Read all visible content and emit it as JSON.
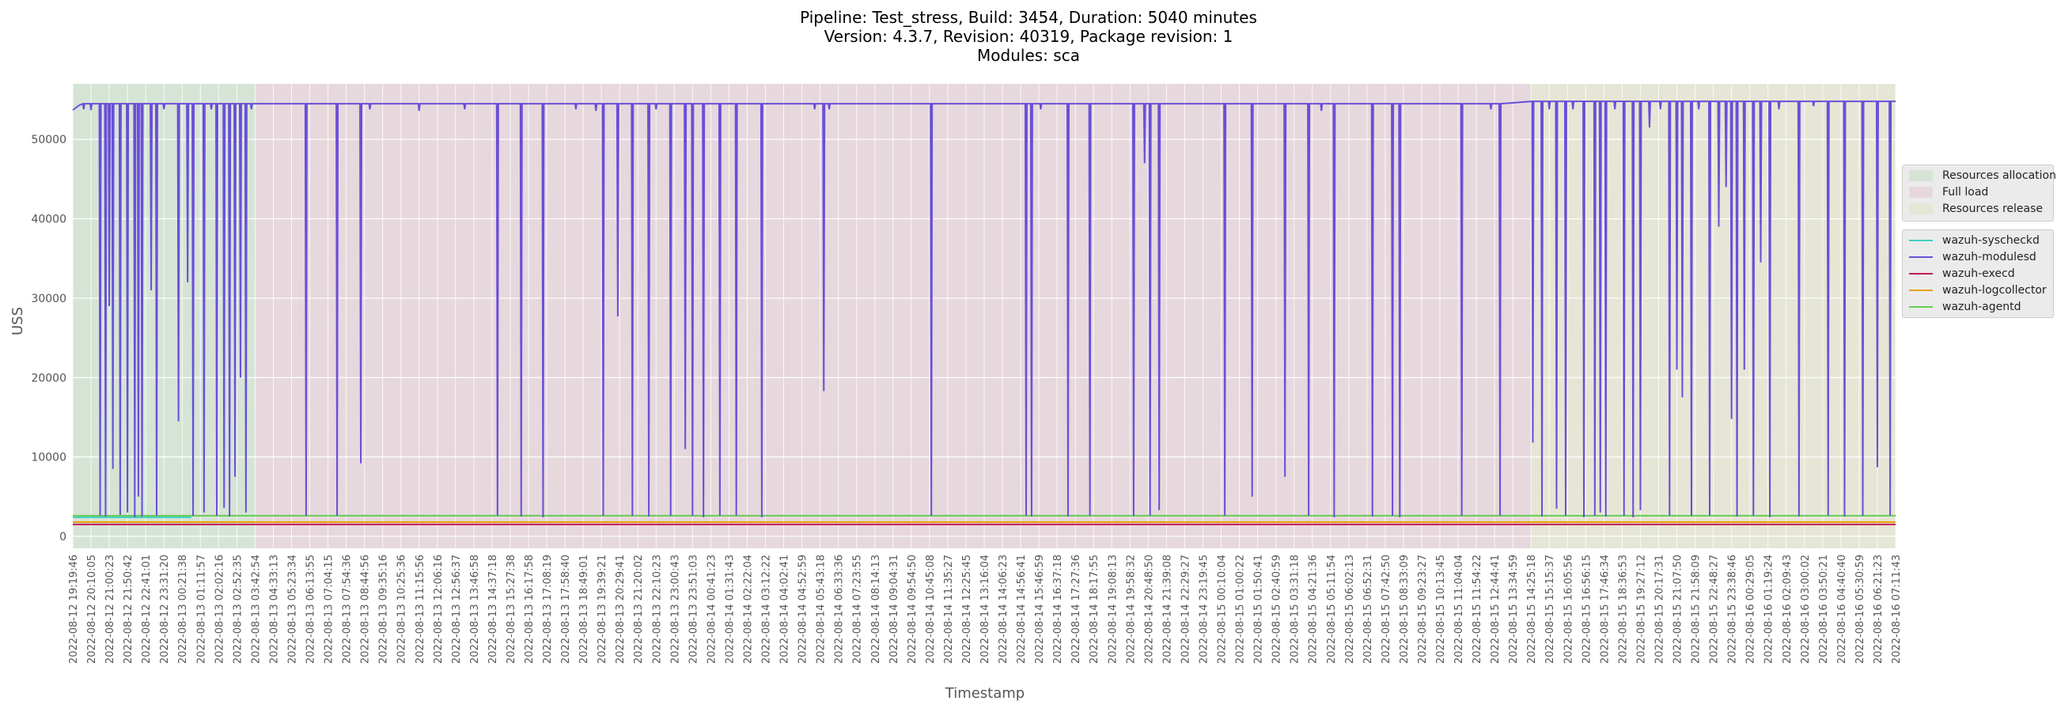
{
  "title_lines": [
    "Pipeline: Test_stress, Build: 3454, Duration: 5040 minutes",
    "Version: 4.3.7, Revision: 40319, Package revision: 1",
    "Modules: sca"
  ],
  "chart_data": {
    "type": "line",
    "xlabel": "Timestamp",
    "ylabel": "USS",
    "ylim": [
      -1500,
      57000
    ],
    "yticks": [
      0,
      10000,
      20000,
      30000,
      40000,
      50000
    ],
    "grid": true,
    "legend_placement": "right",
    "categories": [
      "2022-08-12 19:19:46",
      "2022-08-12 20:10:05",
      "2022-08-12 21:00:23",
      "2022-08-12 21:50:42",
      "2022-08-12 22:41:01",
      "2022-08-12 23:31:20",
      "2022-08-13 00:21:38",
      "2022-08-13 01:11:57",
      "2022-08-13 02:02:16",
      "2022-08-13 02:52:35",
      "2022-08-13 03:42:54",
      "2022-08-13 04:33:13",
      "2022-08-13 05:23:34",
      "2022-08-13 06:13:55",
      "2022-08-13 07:04:15",
      "2022-08-13 07:54:36",
      "2022-08-13 08:44:56",
      "2022-08-13 09:35:16",
      "2022-08-13 10:25:36",
      "2022-08-13 11:15:56",
      "2022-08-13 12:06:16",
      "2022-08-13 12:56:37",
      "2022-08-13 13:46:58",
      "2022-08-13 14:37:18",
      "2022-08-13 15:27:38",
      "2022-08-13 16:17:58",
      "2022-08-13 17:08:19",
      "2022-08-13 17:58:40",
      "2022-08-13 18:49:01",
      "2022-08-13 19:39:21",
      "2022-08-13 20:29:41",
      "2022-08-13 21:20:02",
      "2022-08-13 22:10:23",
      "2022-08-13 23:00:43",
      "2022-08-13 23:51:03",
      "2022-08-14 00:41:23",
      "2022-08-14 01:31:43",
      "2022-08-14 02:22:04",
      "2022-08-14 03:12:22",
      "2022-08-14 04:02:41",
      "2022-08-14 04:52:59",
      "2022-08-14 05:43:18",
      "2022-08-14 06:33:36",
      "2022-08-14 07:23:55",
      "2022-08-14 08:14:13",
      "2022-08-14 09:04:31",
      "2022-08-14 09:54:50",
      "2022-08-14 10:45:08",
      "2022-08-14 11:35:27",
      "2022-08-14 12:25:45",
      "2022-08-14 13:16:04",
      "2022-08-14 14:06:23",
      "2022-08-14 14:56:41",
      "2022-08-14 15:46:59",
      "2022-08-14 16:37:18",
      "2022-08-14 17:27:36",
      "2022-08-14 18:17:55",
      "2022-08-14 19:08:13",
      "2022-08-14 19:58:32",
      "2022-08-14 20:48:50",
      "2022-08-14 21:39:08",
      "2022-08-14 22:29:27",
      "2022-08-14 23:19:45",
      "2022-08-15 00:10:04",
      "2022-08-15 01:00:22",
      "2022-08-15 01:50:41",
      "2022-08-15 02:40:59",
      "2022-08-15 03:31:18",
      "2022-08-15 04:21:36",
      "2022-08-15 05:11:54",
      "2022-08-15 06:02:13",
      "2022-08-15 06:52:31",
      "2022-08-15 07:42:50",
      "2022-08-15 08:33:09",
      "2022-08-15 09:23:27",
      "2022-08-15 10:13:45",
      "2022-08-15 11:04:04",
      "2022-08-15 11:54:22",
      "2022-08-15 12:44:41",
      "2022-08-15 13:34:59",
      "2022-08-15 14:25:18",
      "2022-08-15 15:15:37",
      "2022-08-15 16:05:56",
      "2022-08-15 16:56:15",
      "2022-08-15 17:46:34",
      "2022-08-15 18:36:53",
      "2022-08-15 19:27:12",
      "2022-08-15 20:17:31",
      "2022-08-15 21:07:50",
      "2022-08-15 21:58:09",
      "2022-08-15 22:48:27",
      "2022-08-15 23:38:46",
      "2022-08-16 00:29:05",
      "2022-08-16 01:19:24",
      "2022-08-16 02:09:43",
      "2022-08-16 03:00:02",
      "2022-08-16 03:50:21",
      "2022-08-16 04:40:40",
      "2022-08-16 05:30:59",
      "2022-08-16 06:21:23",
      "2022-08-16 07:11:43"
    ],
    "phases": [
      {
        "name": "Resources allocation",
        "from": "2022-08-12 19:19:46",
        "to": "2022-08-13 03:42:54",
        "color": "#d6e4d6"
      },
      {
        "name": "Full load",
        "from": "2022-08-13 03:42:54",
        "to": "2022-08-15 14:25:18",
        "color": "#e6d8dc"
      },
      {
        "name": "Resources release",
        "from": "2022-08-15 14:25:18",
        "to": "2022-08-16 07:11:43",
        "color": "#e6e6d6"
      }
    ],
    "series": [
      {
        "name": "wazuh-syscheckd",
        "color": "#40d0c0",
        "base": 2400
      },
      {
        "name": "wazuh-modulesd",
        "color": "#6a4fd8",
        "base": 54500
      },
      {
        "name": "wazuh-execd",
        "color": "#c2185b",
        "base": 1500
      },
      {
        "name": "wazuh-logcollector",
        "color": "#e6a000",
        "base": 1800
      },
      {
        "name": "wazuh-agentd",
        "color": "#66cc55",
        "base": 2600
      }
    ],
    "modulesd_dips": [
      [
        0.6,
        53800
      ],
      [
        1.0,
        53700
      ],
      [
        1.5,
        2600
      ],
      [
        1.8,
        2500
      ],
      [
        2.0,
        29000
      ],
      [
        2.2,
        8500
      ],
      [
        2.6,
        2700
      ],
      [
        3.0,
        3000
      ],
      [
        3.4,
        2400
      ],
      [
        3.6,
        5000
      ],
      [
        3.8,
        2500
      ],
      [
        4.3,
        31000
      ],
      [
        4.6,
        2600
      ],
      [
        5.0,
        53800
      ],
      [
        5.8,
        14500
      ],
      [
        6.3,
        32000
      ],
      [
        6.6,
        2600
      ],
      [
        7.2,
        3000
      ],
      [
        7.6,
        53800
      ],
      [
        7.9,
        2600
      ],
      [
        8.3,
        3600
      ],
      [
        8.6,
        2500
      ],
      [
        8.9,
        7500
      ],
      [
        9.2,
        20000
      ],
      [
        9.5,
        3000
      ],
      [
        9.8,
        53800
      ],
      [
        12.8,
        2600
      ],
      [
        14.5,
        2600
      ],
      [
        15.8,
        9200
      ],
      [
        16.3,
        53800
      ],
      [
        19.0,
        53600
      ],
      [
        21.5,
        53800
      ],
      [
        23.3,
        2600
      ],
      [
        24.6,
        2500
      ],
      [
        25.8,
        2400
      ],
      [
        27.6,
        53800
      ],
      [
        28.7,
        53600
      ],
      [
        29.1,
        2600
      ],
      [
        29.9,
        27700
      ],
      [
        30.7,
        2600
      ],
      [
        31.6,
        2500
      ],
      [
        32.0,
        53800
      ],
      [
        32.8,
        2600
      ],
      [
        33.6,
        11000
      ],
      [
        34.0,
        2600
      ],
      [
        34.6,
        2400
      ],
      [
        35.5,
        2600
      ],
      [
        36.4,
        2600
      ],
      [
        37.8,
        2400
      ],
      [
        40.7,
        53800
      ],
      [
        41.2,
        18300
      ],
      [
        41.5,
        53800
      ],
      [
        47.1,
        2600
      ],
      [
        52.3,
        2600
      ],
      [
        52.6,
        2500
      ],
      [
        53.1,
        53800
      ],
      [
        54.6,
        2500
      ],
      [
        55.8,
        2600
      ],
      [
        58.2,
        2600
      ],
      [
        58.8,
        47000
      ],
      [
        59.1,
        2600
      ],
      [
        59.6,
        3300
      ],
      [
        63.2,
        2600
      ],
      [
        64.7,
        5000
      ],
      [
        66.5,
        7500
      ],
      [
        67.8,
        2600
      ],
      [
        68.5,
        53600
      ],
      [
        69.2,
        2400
      ],
      [
        71.3,
        2500
      ],
      [
        72.4,
        2600
      ],
      [
        72.8,
        2400
      ],
      [
        76.2,
        2600
      ],
      [
        77.8,
        53800
      ],
      [
        78.3,
        2600
      ],
      [
        80.1,
        11800
      ],
      [
        80.6,
        2500
      ],
      [
        81.0,
        53800
      ],
      [
        81.4,
        3500
      ],
      [
        81.9,
        2600
      ],
      [
        82.3,
        53800
      ],
      [
        82.9,
        2400
      ],
      [
        83.5,
        2600
      ],
      [
        83.8,
        3000
      ],
      [
        84.1,
        2500
      ],
      [
        84.6,
        53800
      ],
      [
        85.1,
        2600
      ],
      [
        85.6,
        2400
      ],
      [
        86.0,
        3300
      ],
      [
        86.5,
        51500
      ],
      [
        87.1,
        53800
      ],
      [
        87.6,
        2600
      ],
      [
        88.0,
        21000
      ],
      [
        88.3,
        17500
      ],
      [
        88.8,
        2600
      ],
      [
        89.2,
        53800
      ],
      [
        89.8,
        2600
      ],
      [
        90.3,
        39000
      ],
      [
        90.7,
        44000
      ],
      [
        91.0,
        14800
      ],
      [
        91.3,
        2500
      ],
      [
        91.7,
        21000
      ],
      [
        92.2,
        2600
      ],
      [
        92.6,
        34500
      ],
      [
        93.1,
        2400
      ],
      [
        93.6,
        53800
      ],
      [
        94.7,
        2500
      ],
      [
        95.5,
        54200
      ],
      [
        96.3,
        2600
      ],
      [
        97.2,
        2500
      ],
      [
        98.2,
        2600
      ],
      [
        99.0,
        8700
      ],
      [
        99.7,
        2600
      ]
    ]
  },
  "legend_phases": [
    "Resources allocation",
    "Full load",
    "Resources release"
  ],
  "legend_series": [
    "wazuh-syscheckd",
    "wazuh-modulesd",
    "wazuh-execd",
    "wazuh-logcollector",
    "wazuh-agentd"
  ]
}
